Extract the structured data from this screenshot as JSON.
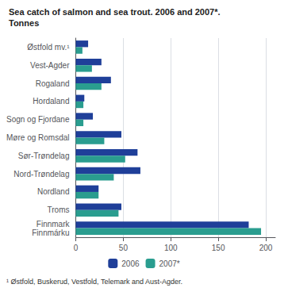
{
  "chart_data": {
    "type": "bar",
    "orientation": "horizontal",
    "title": "Sea catch of salmon and sea trout. 2006 and 2007*.",
    "subtitle": "Tonnes",
    "categories": [
      "Østfold mv.¹",
      "Vest-Agder",
      "Rogaland",
      "Hordaland",
      "Sogn og Fjordane",
      "Møre og Romsdal",
      "Sør-Trøndelag",
      "Nord-Trøndelag",
      "Nordland",
      "Troms",
      "Finnmark\nFinnmárku"
    ],
    "series": [
      {
        "name": "2006",
        "color": "#1f3f99",
        "values": [
          13,
          27,
          37,
          9,
          18,
          48,
          65,
          68,
          24,
          48,
          182
        ]
      },
      {
        "name": "2007*",
        "color": "#2a9d8f",
        "values": [
          7,
          17,
          27,
          8,
          8,
          30,
          52,
          40,
          24,
          45,
          195
        ]
      }
    ],
    "xlim": [
      0,
      210
    ],
    "xticks": [
      0,
      50,
      100,
      150,
      200
    ],
    "grid": true,
    "legend": "bottom",
    "annotations": [
      "¹ Østfold, Buskerud, Vestfold, Telemark and Aust-Agder."
    ]
  }
}
